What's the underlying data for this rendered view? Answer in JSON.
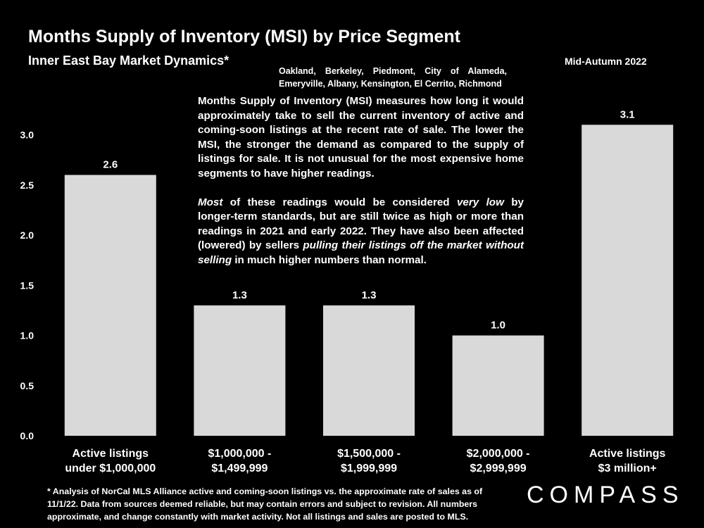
{
  "title": "Months Supply of Inventory (MSI) by Price Segment",
  "subtitle": "Inner East Bay Market Dynamics*",
  "region": "Oakland, Berkeley, Piedmont, City of Alameda, Emeryville, Albany, Kensington, El Cerrito, Richmond",
  "season": "Mid-Autumn 2022",
  "note": {
    "p1": "Months Supply of Inventory (MSI) measures how long it would approximately take to sell the current inventory of active and coming-soon listings at the recent rate of sale. The lower the MSI, the stronger the demand as compared to the supply of listings for sale. It is not unusual for the most expensive home segments to have higher readings.",
    "p2_a": "Most",
    "p2_b": " of these readings would be considered ",
    "p2_c": "very low",
    "p2_d": " by longer-term standards, but are still twice as high or more than readings in 2021 and early 2022. They have also been affected (lowered) by sellers ",
    "p2_e": "pulling their listings off the market without selling",
    "p2_f": " in much higher numbers than normal."
  },
  "footnote": "* Analysis of NorCal MLS Alliance active and coming-soon listings vs. the approximate rate of sales as of 11/1/22. Data from sources deemed reliable, but may contain errors and subject to revision. All numbers approximate, and change constantly with market activity. Not all listings and sales are posted to MLS.",
  "logo": "COMPASS",
  "colors": {
    "background": "#000000",
    "bar": "#d9d9d9",
    "text": "#ffffff"
  },
  "chart_data": {
    "type": "bar",
    "title": "Months Supply of Inventory (MSI) by Price Segment",
    "categories": [
      [
        "Active listings",
        "under $1,000,000"
      ],
      [
        "$1,000,000 -",
        "$1,499,999"
      ],
      [
        "$1,500,000 -",
        "$1,999,999"
      ],
      [
        "$2,000,000 -",
        "$2,999,999"
      ],
      [
        "Active listings",
        "$3 million+"
      ]
    ],
    "values": [
      2.6,
      1.3,
      1.3,
      1.0,
      3.1
    ],
    "value_labels": [
      "2.6",
      "1.3",
      "1.3",
      "1.0",
      "3.1"
    ],
    "yticks": [
      "0.0",
      "0.5",
      "1.0",
      "1.5",
      "2.0",
      "2.5",
      "3.0"
    ],
    "ylim": [
      0,
      3.2
    ],
    "grid": false,
    "xlabel": "",
    "ylabel": ""
  }
}
